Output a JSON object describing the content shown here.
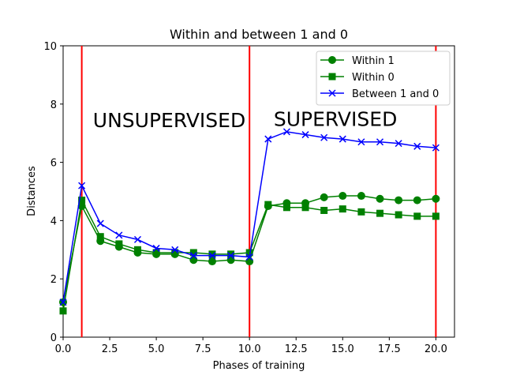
{
  "chart_data": {
    "type": "line",
    "title": "Within and between 1 and 0",
    "xlabel": "Phases of training",
    "ylabel": "Distances",
    "xlim": [
      0,
      21
    ],
    "ylim": [
      0,
      10
    ],
    "xticks": [
      "0.0",
      "2.5",
      "5.0",
      "7.5",
      "10.0",
      "12.5",
      "15.0",
      "17.5",
      "20.0"
    ],
    "yticks": [
      "0",
      "2",
      "4",
      "6",
      "8",
      "10"
    ],
    "grid": false,
    "legend_position": "top-right",
    "x": [
      0,
      1,
      2,
      3,
      4,
      5,
      6,
      7,
      8,
      9,
      10,
      11,
      12,
      13,
      14,
      15,
      16,
      17,
      18,
      19,
      20
    ],
    "series": [
      {
        "name": "Within 1",
        "color": "#008000",
        "marker": "circle",
        "values": [
          1.2,
          4.5,
          3.3,
          3.1,
          2.9,
          2.85,
          2.85,
          2.65,
          2.6,
          2.65,
          2.6,
          4.5,
          4.6,
          4.6,
          4.8,
          4.85,
          4.85,
          4.75,
          4.7,
          4.7,
          4.75
        ]
      },
      {
        "name": "Within 0",
        "color": "#008000",
        "marker": "square",
        "values": [
          0.9,
          4.7,
          3.45,
          3.2,
          3.0,
          2.9,
          2.9,
          2.9,
          2.85,
          2.85,
          2.9,
          4.55,
          4.45,
          4.45,
          4.35,
          4.4,
          4.3,
          4.25,
          4.2,
          4.15,
          4.15
        ]
      },
      {
        "name": "Between 1 and 0",
        "color": "#0000ff",
        "marker": "x",
        "values": [
          1.2,
          5.2,
          3.9,
          3.5,
          3.35,
          3.05,
          3.0,
          2.8,
          2.8,
          2.8,
          2.75,
          6.8,
          7.05,
          6.95,
          6.85,
          6.8,
          6.7,
          6.7,
          6.65,
          6.55,
          6.5
        ]
      }
    ],
    "vlines": [
      {
        "x": 1,
        "color": "#ff0000"
      },
      {
        "x": 10,
        "color": "#ff0000"
      },
      {
        "x": 20,
        "color": "#ff0000"
      }
    ],
    "annotations": [
      {
        "text": "UNSUPERVISED",
        "x": 1.6,
        "y": 7.45
      },
      {
        "text": "SUPERVISED",
        "x": 11.3,
        "y": 7.5
      }
    ]
  }
}
